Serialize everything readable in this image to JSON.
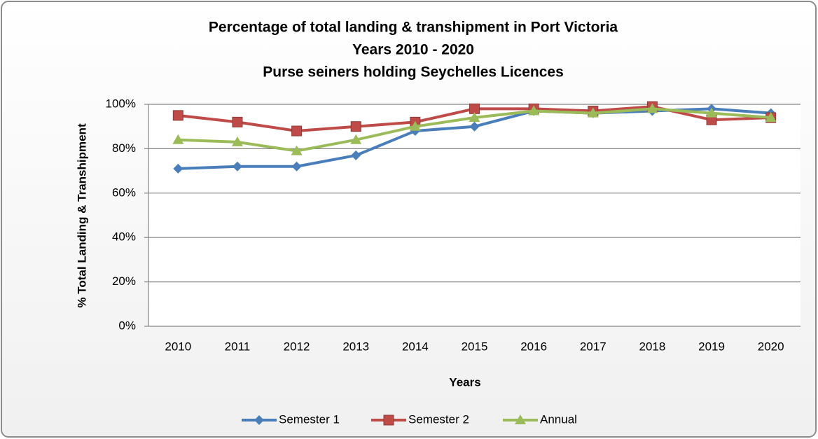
{
  "chart_data": {
    "type": "line",
    "title": [
      "Percentage of total landing & transhipment in Port Victoria",
      "Years 2010 - 2020",
      "Purse seiners holding Seychelles Licences"
    ],
    "x_label": "Years",
    "y_label": "% Total Landing & Transhipment",
    "categories": [
      "2010",
      "2011",
      "2012",
      "2013",
      "2014",
      "2015",
      "2016",
      "2017",
      "2018",
      "2019",
      "2020"
    ],
    "series": [
      {
        "name": "Semester 1",
        "color": "#4a7ebb",
        "marker": "diamond",
        "values": [
          71,
          72,
          72,
          77,
          88,
          90,
          97,
          96,
          97,
          98,
          96
        ]
      },
      {
        "name": "Semester 2",
        "color": "#be4b48",
        "marker": "square",
        "values": [
          95,
          92,
          88,
          90,
          92,
          98,
          98,
          97,
          99,
          93,
          94
        ]
      },
      {
        "name": "Annual",
        "color": "#9bbb59",
        "marker": "triangle",
        "values": [
          84,
          83,
          79,
          84,
          90,
          94,
          97,
          96,
          98,
          96,
          94
        ]
      }
    ],
    "ylim": [
      0,
      100
    ],
    "yticks": [
      {
        "value": 0,
        "label": "0%"
      },
      {
        "value": 20,
        "label": "20%"
      },
      {
        "value": 40,
        "label": "40%"
      },
      {
        "value": 60,
        "label": "60%"
      },
      {
        "value": 80,
        "label": "80%"
      },
      {
        "value": 100,
        "label": "100%"
      }
    ],
    "grid": true,
    "legend": "bottom"
  }
}
